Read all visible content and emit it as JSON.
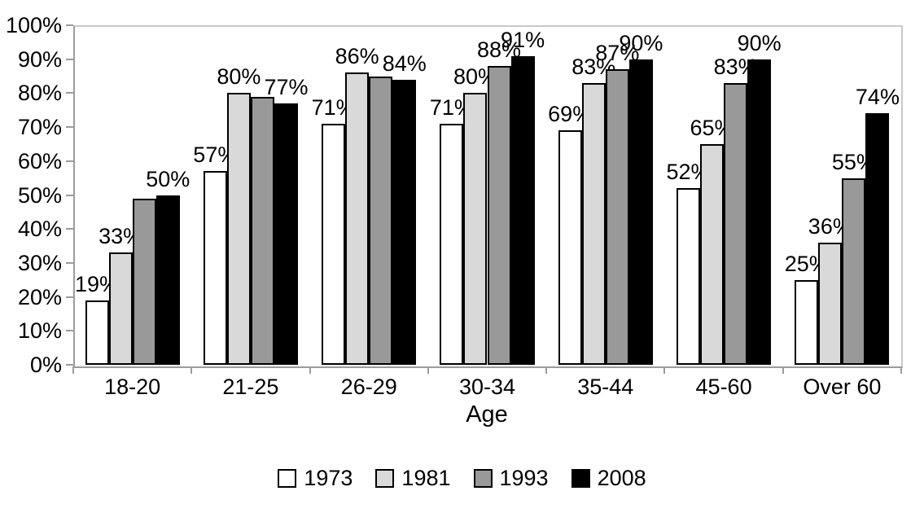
{
  "chart_data": {
    "type": "bar",
    "title": "",
    "xlabel": "Age",
    "ylabel": "",
    "categories": [
      "18-20",
      "21-25",
      "26-29",
      "30-34",
      "35-44",
      "45-60",
      "Over 60"
    ],
    "series": [
      {
        "name": "1973",
        "color": "#ffffff",
        "values": [
          19,
          57,
          71,
          71,
          69,
          52,
          25
        ],
        "labels": [
          "19%",
          "57%",
          "71%",
          "71%",
          "69%",
          "52%",
          "25%"
        ]
      },
      {
        "name": "1981",
        "color": "#d9d9d9",
        "values": [
          33,
          80,
          86,
          80,
          83,
          65,
          36
        ],
        "labels": [
          "33%",
          "80%",
          "86%",
          "80%",
          "83%",
          "65%",
          "36%"
        ]
      },
      {
        "name": "1993",
        "color": "#999999",
        "values": [
          49,
          79,
          85,
          88,
          87,
          83,
          55
        ],
        "labels": [
          "",
          "",
          "",
          "88%",
          "87%",
          "83%",
          "55%"
        ]
      },
      {
        "name": "2008",
        "color": "#000000",
        "values": [
          50,
          77,
          84,
          91,
          90,
          90,
          74
        ],
        "labels": [
          "50%",
          "77%",
          "84%",
          "91%",
          "90%",
          "90%",
          "74%"
        ]
      }
    ],
    "y_axis": {
      "min": 0,
      "max": 100,
      "step": 10,
      "tick_labels": [
        "0%",
        "10%",
        "20%",
        "30%",
        "40%",
        "50%",
        "60%",
        "70%",
        "80%",
        "90%",
        "100%"
      ]
    },
    "legend": {
      "position": "bottom",
      "entries": [
        "1973",
        "1981",
        "1993",
        "2008"
      ]
    },
    "grid": false,
    "axis_color": "#9c9c9c",
    "plot_border_color": "#c9c9c9"
  }
}
